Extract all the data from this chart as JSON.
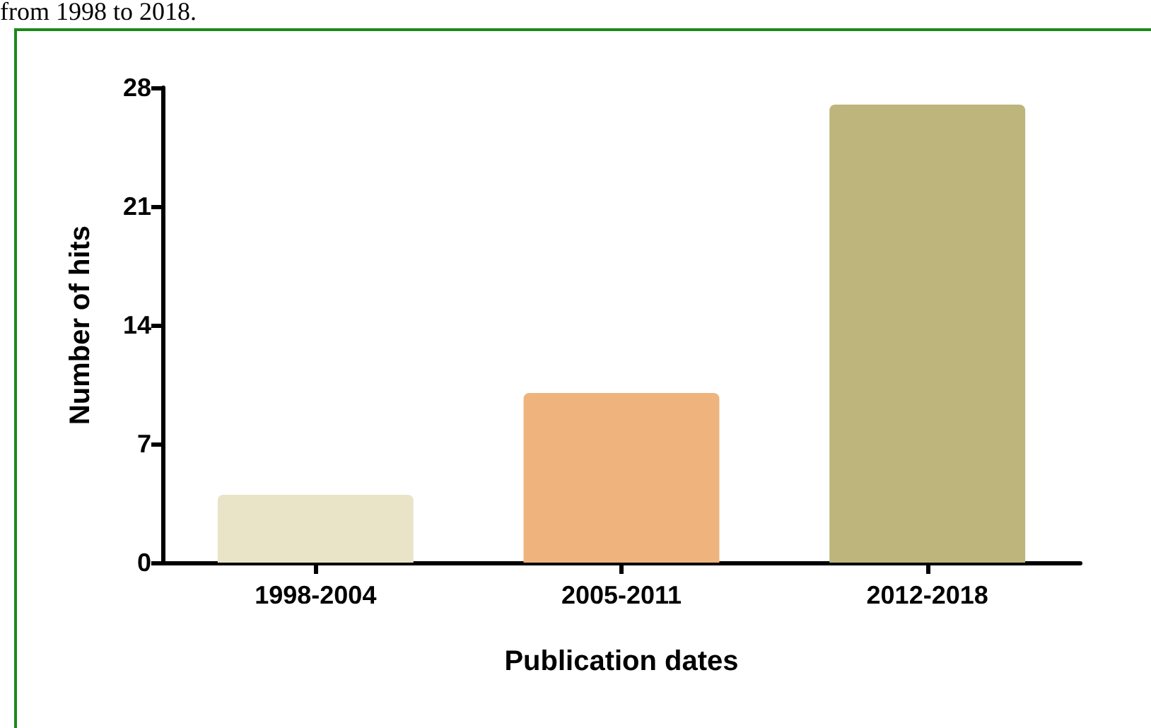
{
  "chart_data": {
    "type": "bar",
    "xlabel": "Publication dates",
    "ylabel": "Number of hits",
    "categories": [
      "1998-2004",
      "2005-2011",
      "2012-2018"
    ],
    "values": [
      4,
      10,
      27
    ],
    "colors": [
      "#e9e4c8",
      "#efb47e",
      "#bdb57c"
    ],
    "ylim": [
      0,
      28
    ],
    "yticks": [
      0,
      7,
      14,
      21,
      28
    ],
    "grid": false,
    "annotations": [
      "from 1998 to 2018."
    ]
  }
}
